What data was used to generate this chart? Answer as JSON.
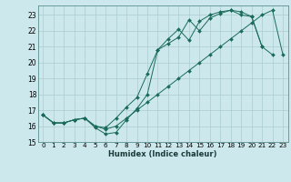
{
  "xlabel": "Humidex (Indice chaleur)",
  "background_color": "#cce8ec",
  "grid_color": "#aaccd0",
  "line_color": "#1a6b5a",
  "xlim": [
    -0.5,
    23.5
  ],
  "ylim": [
    15.0,
    23.6
  ],
  "yticks": [
    15,
    16,
    17,
    18,
    19,
    20,
    21,
    22,
    23
  ],
  "xticks": [
    0,
    1,
    2,
    3,
    4,
    5,
    6,
    7,
    8,
    9,
    10,
    11,
    12,
    13,
    14,
    15,
    16,
    17,
    18,
    19,
    20,
    21,
    22,
    23
  ],
  "series": [
    {
      "x": [
        0,
        1,
        2,
        3,
        4,
        5,
        6,
        7,
        8,
        9,
        10,
        11,
        12,
        13,
        14,
        15,
        16,
        17,
        18,
        19,
        20,
        21,
        22,
        23
      ],
      "y": [
        16.7,
        16.2,
        16.2,
        16.4,
        16.5,
        15.9,
        15.5,
        15.6,
        16.4,
        17.1,
        18.0,
        20.8,
        21.5,
        22.1,
        21.4,
        22.6,
        23.0,
        23.2,
        23.3,
        23.0,
        22.9,
        21.0,
        20.5,
        null
      ]
    },
    {
      "x": [
        0,
        1,
        2,
        3,
        4,
        5,
        6,
        7,
        8,
        9,
        10,
        11,
        12,
        13,
        14,
        15,
        16,
        17,
        18,
        19,
        20,
        21,
        22,
        23
      ],
      "y": [
        16.7,
        16.2,
        16.2,
        16.4,
        16.5,
        16.0,
        15.8,
        16.0,
        16.5,
        17.0,
        17.5,
        18.0,
        18.5,
        19.0,
        19.5,
        20.0,
        20.5,
        21.0,
        21.5,
        22.0,
        22.5,
        23.0,
        23.3,
        20.5
      ]
    },
    {
      "x": [
        0,
        1,
        2,
        3,
        4,
        5,
        6,
        7,
        8,
        9,
        10,
        11,
        12,
        13,
        14,
        15,
        16,
        17,
        18,
        19,
        20,
        21,
        22,
        23
      ],
      "y": [
        16.7,
        16.2,
        16.2,
        16.4,
        16.5,
        16.0,
        15.9,
        16.5,
        17.2,
        17.8,
        19.3,
        20.8,
        21.2,
        21.6,
        22.7,
        22.0,
        22.8,
        23.1,
        23.3,
        23.2,
        22.9,
        21.0,
        null,
        null
      ]
    }
  ],
  "xlabel_fontsize": 6.0,
  "tick_fontsize": 5.2,
  "ytick_fontsize": 5.5
}
